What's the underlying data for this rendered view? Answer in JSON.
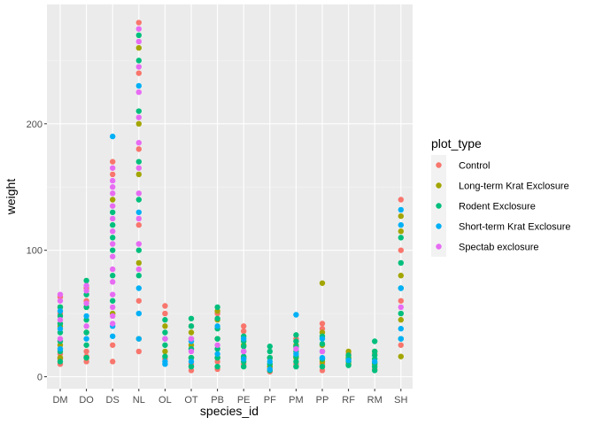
{
  "chart_data": {
    "type": "scatter",
    "title": "",
    "xlabel": "species_id",
    "ylabel": "weight",
    "categories": [
      "DM",
      "DO",
      "DS",
      "NL",
      "OL",
      "OT",
      "PB",
      "PE",
      "PF",
      "PM",
      "PP",
      "RF",
      "RM",
      "SH"
    ],
    "y_ticks": [
      0,
      100,
      200
    ],
    "ylim": [
      -6,
      294
    ],
    "grid": true,
    "legend_position": "right",
    "legend": {
      "title": "plot_type",
      "entries": [
        {
          "label": "Control",
          "color": "#F8766D"
        },
        {
          "label": "Long-term Krat Exclosure",
          "color": "#A3A500"
        },
        {
          "label": "Rodent Exclosure",
          "color": "#00BF7D"
        },
        {
          "label": "Short-term Krat Exclosure",
          "color": "#00B0F6"
        },
        {
          "label": "Spectab exclosure",
          "color": "#E76BF3"
        }
      ]
    },
    "series": [
      {
        "name": "Control",
        "color": "#F8766D",
        "points": [
          [
            "DM",
            10
          ],
          [
            "DM",
            14
          ],
          [
            "DM",
            18
          ],
          [
            "DM",
            50
          ],
          [
            "DM",
            63
          ],
          [
            "DO",
            12
          ],
          [
            "DO",
            16
          ],
          [
            "DO",
            20
          ],
          [
            "DO",
            60
          ],
          [
            "DO",
            70
          ],
          [
            "DS",
            12
          ],
          [
            "DS",
            25
          ],
          [
            "DS",
            160
          ],
          [
            "DS",
            170
          ],
          [
            "NL",
            20
          ],
          [
            "NL",
            60
          ],
          [
            "NL",
            120
          ],
          [
            "NL",
            180
          ],
          [
            "NL",
            240
          ],
          [
            "NL",
            280
          ],
          [
            "OL",
            14
          ],
          [
            "OL",
            50
          ],
          [
            "OL",
            56
          ],
          [
            "OT",
            5
          ],
          [
            "OT",
            10
          ],
          [
            "OT",
            40
          ],
          [
            "PB",
            6
          ],
          [
            "PB",
            12
          ],
          [
            "PB",
            50
          ],
          [
            "PE",
            10
          ],
          [
            "PE",
            36
          ],
          [
            "PE",
            40
          ],
          [
            "PF",
            4
          ],
          [
            "PF",
            8
          ],
          [
            "PM",
            10
          ],
          [
            "PM",
            30
          ],
          [
            "PP",
            5
          ],
          [
            "PP",
            10
          ],
          [
            "PP",
            38
          ],
          [
            "PP",
            42
          ],
          [
            "RF",
            12
          ],
          [
            "RF",
            18
          ],
          [
            "RM",
            6
          ],
          [
            "RM",
            18
          ],
          [
            "SH",
            25
          ],
          [
            "SH",
            60
          ],
          [
            "SH",
            100
          ],
          [
            "SH",
            140
          ]
        ]
      },
      {
        "name": "Long-term Krat Exclosure",
        "color": "#A3A500",
        "points": [
          [
            "DM",
            15
          ],
          [
            "DM",
            25
          ],
          [
            "DM",
            40
          ],
          [
            "DM",
            55
          ],
          [
            "DO",
            15
          ],
          [
            "DO",
            35
          ],
          [
            "DO",
            55
          ],
          [
            "DS",
            50
          ],
          [
            "DS",
            140
          ],
          [
            "NL",
            30
          ],
          [
            "NL",
            90
          ],
          [
            "NL",
            160
          ],
          [
            "NL",
            200
          ],
          [
            "NL",
            260
          ],
          [
            "OL",
            20
          ],
          [
            "OL",
            40
          ],
          [
            "OT",
            15
          ],
          [
            "OT",
            25
          ],
          [
            "OT",
            35
          ],
          [
            "PB",
            15
          ],
          [
            "PB",
            30
          ],
          [
            "PB",
            45
          ],
          [
            "PB",
            52
          ],
          [
            "PE",
            15
          ],
          [
            "PE",
            25
          ],
          [
            "PF",
            8
          ],
          [
            "PF",
            15
          ],
          [
            "PM",
            15
          ],
          [
            "PM",
            25
          ],
          [
            "PP",
            12
          ],
          [
            "PP",
            25
          ],
          [
            "PP",
            35
          ],
          [
            "PP",
            74
          ],
          [
            "RF",
            10
          ],
          [
            "RF",
            15
          ],
          [
            "RF",
            20
          ],
          [
            "RM",
            10
          ],
          [
            "RM",
            20
          ],
          [
            "SH",
            16
          ],
          [
            "SH",
            45
          ],
          [
            "SH",
            80
          ],
          [
            "SH",
            115
          ],
          [
            "SH",
            127
          ]
        ]
      },
      {
        "name": "Rodent Exclosure",
        "color": "#00BF7D",
        "points": [
          [
            "DM",
            12
          ],
          [
            "DM",
            20
          ],
          [
            "DM",
            28
          ],
          [
            "DM",
            35
          ],
          [
            "DM",
            42
          ],
          [
            "DM",
            48
          ],
          [
            "DM",
            55
          ],
          [
            "DO",
            15
          ],
          [
            "DO",
            25
          ],
          [
            "DO",
            35
          ],
          [
            "DO",
            45
          ],
          [
            "DO",
            55
          ],
          [
            "DO",
            65
          ],
          [
            "DO",
            76
          ],
          [
            "DS",
            60
          ],
          [
            "DS",
            80
          ],
          [
            "DS",
            100
          ],
          [
            "DS",
            110
          ],
          [
            "DS",
            120
          ],
          [
            "DS",
            130
          ],
          [
            "NL",
            80
          ],
          [
            "NL",
            100
          ],
          [
            "NL",
            140
          ],
          [
            "NL",
            170
          ],
          [
            "NL",
            210
          ],
          [
            "NL",
            250
          ],
          [
            "NL",
            270
          ],
          [
            "OL",
            16
          ],
          [
            "OL",
            25
          ],
          [
            "OL",
            35
          ],
          [
            "OL",
            45
          ],
          [
            "OT",
            8
          ],
          [
            "OT",
            15
          ],
          [
            "OT",
            22
          ],
          [
            "OT",
            30
          ],
          [
            "OT",
            40
          ],
          [
            "OT",
            46
          ],
          [
            "PB",
            8
          ],
          [
            "PB",
            15
          ],
          [
            "PB",
            22
          ],
          [
            "PB",
            30
          ],
          [
            "PB",
            38
          ],
          [
            "PB",
            46
          ],
          [
            "PB",
            55
          ],
          [
            "PE",
            8
          ],
          [
            "PE",
            12
          ],
          [
            "PE",
            16
          ],
          [
            "PE",
            20
          ],
          [
            "PE",
            24
          ],
          [
            "PE",
            28
          ],
          [
            "PE",
            32
          ],
          [
            "PF",
            5
          ],
          [
            "PF",
            10
          ],
          [
            "PF",
            15
          ],
          [
            "PF",
            20
          ],
          [
            "PF",
            24
          ],
          [
            "PM",
            8
          ],
          [
            "PM",
            12
          ],
          [
            "PM",
            16
          ],
          [
            "PM",
            20
          ],
          [
            "PM",
            24
          ],
          [
            "PM",
            28
          ],
          [
            "PM",
            33
          ],
          [
            "PP",
            8
          ],
          [
            "PP",
            14
          ],
          [
            "PP",
            20
          ],
          [
            "PP",
            26
          ],
          [
            "PP",
            32
          ],
          [
            "RF",
            9
          ],
          [
            "RF",
            12
          ],
          [
            "RF",
            14
          ],
          [
            "RF",
            17
          ],
          [
            "RM",
            5
          ],
          [
            "RM",
            8
          ],
          [
            "RM",
            11
          ],
          [
            "RM",
            14
          ],
          [
            "RM",
            17
          ],
          [
            "RM",
            20
          ],
          [
            "RM",
            28
          ],
          [
            "SH",
            30
          ],
          [
            "SH",
            50
          ],
          [
            "SH",
            70
          ],
          [
            "SH",
            90
          ],
          [
            "SH",
            110
          ]
        ]
      },
      {
        "name": "Short-term Krat Exclosure",
        "color": "#00B0F6",
        "points": [
          [
            "DM",
            22
          ],
          [
            "DM",
            38
          ],
          [
            "DM",
            52
          ],
          [
            "DO",
            30
          ],
          [
            "DO",
            48
          ],
          [
            "DS",
            32
          ],
          [
            "DS",
            40
          ],
          [
            "DS",
            190
          ],
          [
            "NL",
            30
          ],
          [
            "NL",
            50
          ],
          [
            "NL",
            70
          ],
          [
            "NL",
            130
          ],
          [
            "NL",
            230
          ],
          [
            "OL",
            10
          ],
          [
            "OL",
            12
          ],
          [
            "OL",
            30
          ],
          [
            "OT",
            12
          ],
          [
            "OT",
            28
          ],
          [
            "PB",
            18
          ],
          [
            "PB",
            40
          ],
          [
            "PE",
            14
          ],
          [
            "PE",
            30
          ],
          [
            "PF",
            6
          ],
          [
            "PF",
            12
          ],
          [
            "PM",
            18
          ],
          [
            "PM",
            49
          ],
          [
            "PP",
            15
          ],
          [
            "PP",
            30
          ],
          [
            "RF",
            13
          ],
          [
            "RM",
            12
          ],
          [
            "SH",
            30
          ],
          [
            "SH",
            38
          ],
          [
            "SH",
            70
          ],
          [
            "SH",
            120
          ],
          [
            "SH",
            132
          ]
        ]
      },
      {
        "name": "Spectab exclosure",
        "color": "#E76BF3",
        "points": [
          [
            "DM",
            30
          ],
          [
            "DM",
            45
          ],
          [
            "DM",
            60
          ],
          [
            "DM",
            65
          ],
          [
            "DO",
            40
          ],
          [
            "DO",
            58
          ],
          [
            "DO",
            68
          ],
          [
            "DO",
            72
          ],
          [
            "DS",
            42
          ],
          [
            "DS",
            48
          ],
          [
            "DS",
            55
          ],
          [
            "DS",
            65
          ],
          [
            "DS",
            75
          ],
          [
            "DS",
            85
          ],
          [
            "DS",
            95
          ],
          [
            "DS",
            105
          ],
          [
            "DS",
            115
          ],
          [
            "DS",
            125
          ],
          [
            "DS",
            135
          ],
          [
            "DS",
            145
          ],
          [
            "DS",
            150
          ],
          [
            "DS",
            155
          ],
          [
            "DS",
            165
          ],
          [
            "NL",
            85
          ],
          [
            "NL",
            105
          ],
          [
            "NL",
            125
          ],
          [
            "NL",
            145
          ],
          [
            "NL",
            165
          ],
          [
            "NL",
            185
          ],
          [
            "NL",
            205
          ],
          [
            "NL",
            225
          ],
          [
            "NL",
            245
          ],
          [
            "NL",
            265
          ],
          [
            "NL",
            275
          ],
          [
            "OL",
            30
          ],
          [
            "OT",
            20
          ],
          [
            "OT",
            30
          ],
          [
            "PB",
            25
          ],
          [
            "PE",
            20
          ],
          [
            "PM",
            22
          ],
          [
            "PP",
            20
          ],
          [
            "SH",
            55
          ]
        ]
      }
    ]
  }
}
